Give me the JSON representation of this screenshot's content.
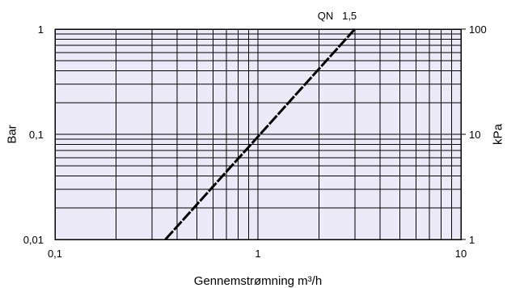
{
  "chart_data": {
    "type": "line",
    "title": "",
    "xlabel": "Gennemstrømning m³/h",
    "ylabel": "Bar",
    "y2label": "kPa",
    "x_scale": "log",
    "y_scale": "log",
    "xlim": [
      0.1,
      10
    ],
    "ylim": [
      0.01,
      1
    ],
    "grid": true,
    "x_ticks": [
      {
        "value": 0.1,
        "label": "0,1"
      },
      {
        "value": 1,
        "label": "1"
      },
      {
        "value": 10,
        "label": "10"
      }
    ],
    "y_ticks": [
      {
        "value": 0.01,
        "label": "0,01"
      },
      {
        "value": 0.1,
        "label": "0,1"
      },
      {
        "value": 1,
        "label": "1"
      }
    ],
    "y2_ticks": [
      {
        "value": 0.01,
        "label": "1"
      },
      {
        "value": 0.1,
        "label": "10"
      },
      {
        "value": 1,
        "label": "100"
      }
    ],
    "series": [
      {
        "name": "QN   1,5",
        "x": [
          0.35,
          3.0
        ],
        "y": [
          0.01,
          1.0
        ]
      }
    ],
    "colors": {
      "plot_background": "#ECEAF8",
      "grid": "#000000",
      "line": "#000000"
    }
  }
}
